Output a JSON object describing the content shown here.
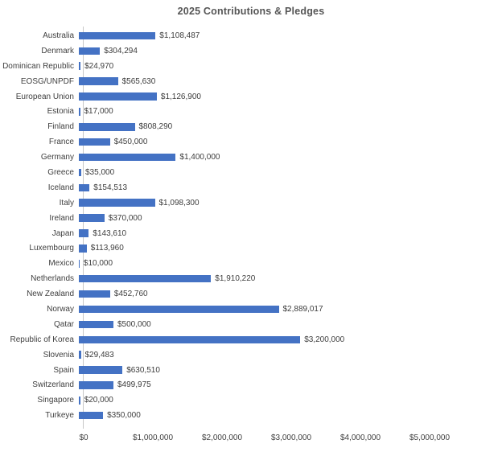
{
  "colors": {
    "bar": "#4472C4",
    "axis_line": "#c8c8c8",
    "title_text": "#555555",
    "label_text": "#404040"
  },
  "chart_data": {
    "type": "bar",
    "orientation": "horizontal",
    "title": "2025 Contributions & Pledges",
    "xlabel": "",
    "ylabel": "",
    "grid": false,
    "legend": false,
    "xlim": [
      0,
      5000000
    ],
    "x_ticks": [
      "$0",
      "$1,000,000",
      "$2,000,000",
      "$3,000,000",
      "$4,000,000",
      "$5,000,000"
    ],
    "x_tick_values": [
      0,
      1000000,
      2000000,
      3000000,
      4000000,
      5000000
    ],
    "categories": [
      "Australia",
      "Denmark",
      "Dominican Republic",
      "EOSG/UNPDF",
      "European Union",
      "Estonia",
      "Finland",
      "France",
      "Germany",
      "Greece",
      "Iceland",
      "Italy",
      "Ireland",
      "Japan",
      "Luxembourg",
      "Mexico",
      "Netherlands",
      "New Zealand",
      "Norway",
      "Qatar",
      "Republic of Korea",
      "Slovenia",
      "Spain",
      "Switzerland",
      "Singapore",
      "Turkeye"
    ],
    "values": [
      1108487,
      304294,
      24970,
      565630,
      1126900,
      17000,
      808290,
      450000,
      1400000,
      35000,
      154513,
      1098300,
      370000,
      143610,
      113960,
      10000,
      1910220,
      452760,
      2889017,
      500000,
      3200000,
      29483,
      630510,
      499975,
      20000,
      350000
    ],
    "value_labels": [
      "$1,108,487",
      "$304,294",
      "$24,970",
      "$565,630",
      "$1,126,900",
      "$17,000",
      "$808,290",
      "$450,000",
      "$1,400,000",
      "$35,000",
      "$154,513",
      "$1,098,300",
      "$370,000",
      "$143,610",
      "$113,960",
      "$10,000",
      "$1,910,220",
      "$452,760",
      "$2,889,017",
      "$500,000",
      "$3,200,000",
      "$29,483",
      "$630,510",
      "$499,975",
      "$20,000",
      "$350,000"
    ]
  }
}
